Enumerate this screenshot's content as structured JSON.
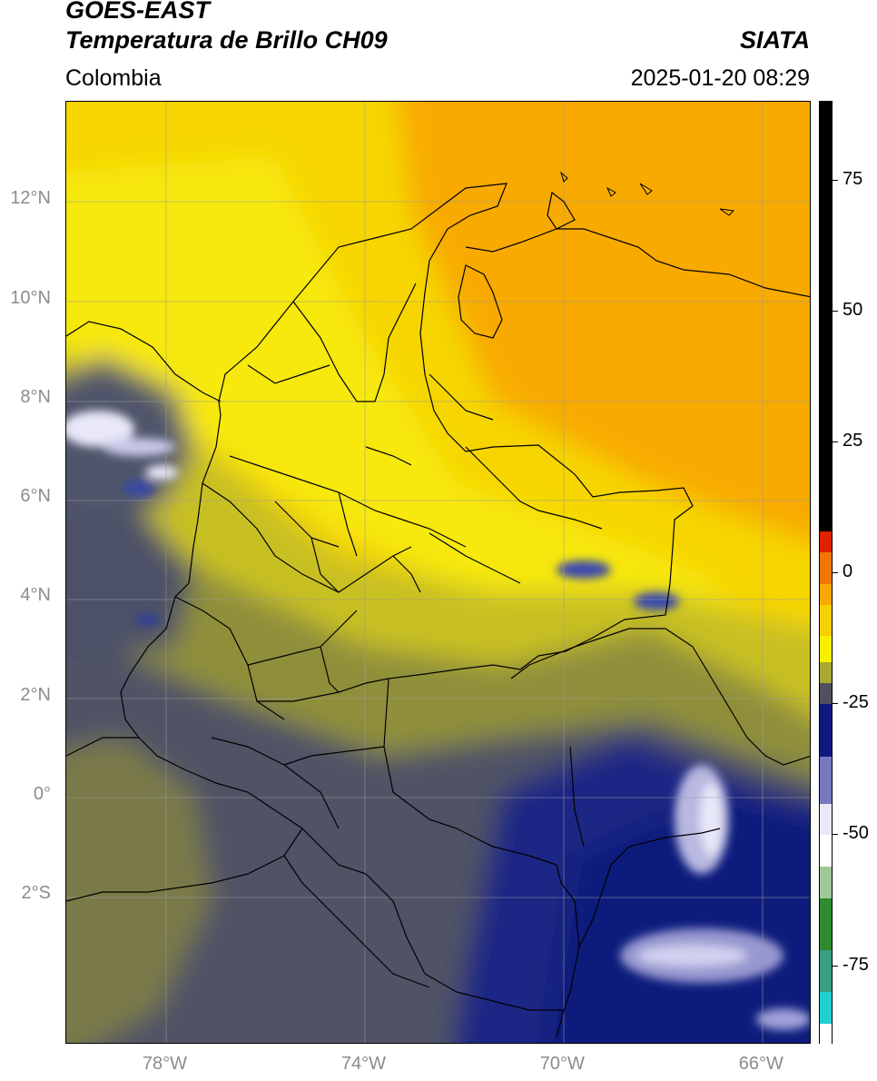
{
  "header": {
    "satellite": "GOES-EAST",
    "product": "Temperatura de Brillo CH09",
    "organization": "SIATA",
    "region": "Colombia",
    "timestamp": "2025-01-20 08:29"
  },
  "map": {
    "lat_labels": [
      "12°N",
      "10°N",
      "8°N",
      "6°N",
      "4°N",
      "2°N",
      "0°",
      "2°S"
    ],
    "lon_labels": [
      "78°W",
      "74°W",
      "70°W",
      "66°W"
    ],
    "lat_values": [
      12,
      10,
      8,
      6,
      4,
      2,
      0,
      -2
    ],
    "lon_values": [
      -78,
      -74,
      -70,
      -66
    ],
    "lon_range": [
      -80,
      -65
    ],
    "lat_range": [
      -5,
      14
    ],
    "grid": true,
    "palette": {
      "orange": "#f8a800",
      "yellow": "#f5e010",
      "olive": "#8f8f3a",
      "slate": "#4d5060",
      "navy": "#1a2480",
      "white_cloud": "#e8e8f8"
    }
  },
  "colorbar": {
    "tick_values": [
      75,
      50,
      25,
      0,
      -25,
      -50,
      -75
    ],
    "tick_labels": [
      "75",
      "50",
      "25",
      "0",
      "-25",
      "-50",
      "-75"
    ],
    "range": [
      -90,
      90
    ],
    "segments": [
      {
        "from": 90,
        "to": 8,
        "color": "#000000"
      },
      {
        "from": 8,
        "to": 4,
        "color": "#e02000"
      },
      {
        "from": 4,
        "to": -2,
        "color": "#f07800"
      },
      {
        "from": -2,
        "to": -6,
        "color": "#f8a800"
      },
      {
        "from": -6,
        "to": -12,
        "color": "#f6d000"
      },
      {
        "from": -12,
        "to": -17,
        "color": "#f8f000"
      },
      {
        "from": -17,
        "to": -21,
        "color": "#a8a830"
      },
      {
        "from": -21,
        "to": -25,
        "color": "#505060"
      },
      {
        "from": -25,
        "to": -35,
        "color": "#101880"
      },
      {
        "from": -35,
        "to": -44,
        "color": "#7878c0"
      },
      {
        "from": -44,
        "to": -50,
        "color": "#e8e8f8"
      },
      {
        "from": -50,
        "to": -56,
        "color": "#ffffff"
      },
      {
        "from": -56,
        "to": -62,
        "color": "#a0c898"
      },
      {
        "from": -62,
        "to": -72,
        "color": "#2f8a30"
      },
      {
        "from": -72,
        "to": -80,
        "color": "#38a080"
      },
      {
        "from": -80,
        "to": -86,
        "color": "#20d0d0"
      },
      {
        "from": -86,
        "to": -90,
        "color": "#ffffff"
      }
    ]
  }
}
